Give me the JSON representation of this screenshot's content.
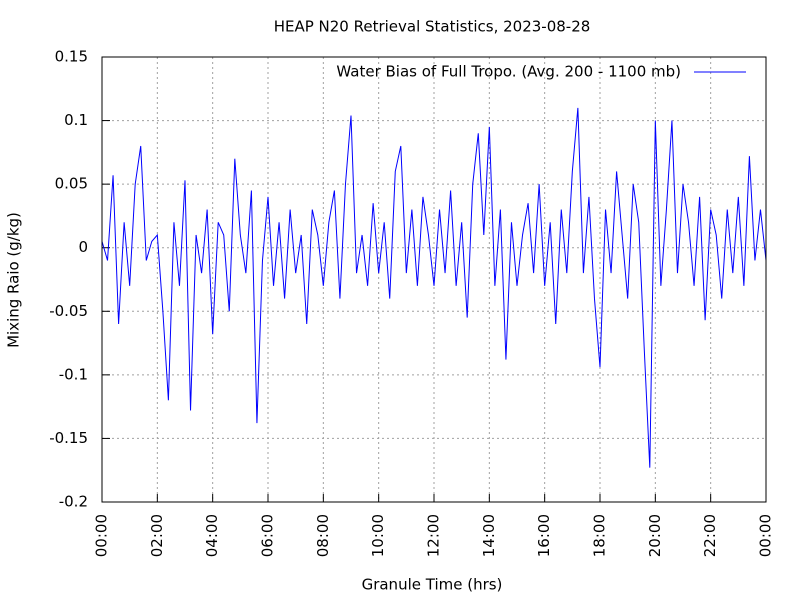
{
  "chart_data": {
    "type": "line",
    "title": "HEAP N20 Retrieval Statistics, 2023-08-28",
    "x_label": "Granule Time (hrs)",
    "y_label": "Mixing Raio (g/kg)",
    "x": [
      0,
      0.2,
      0.4,
      0.6,
      0.8,
      1,
      1.2,
      1.4,
      1.6,
      1.8,
      2,
      2.2,
      2.4,
      2.6,
      2.8,
      3,
      3.2,
      3.4,
      3.6,
      3.8,
      4,
      4.2,
      4.4,
      4.6,
      4.8,
      5,
      5.2,
      5.4,
      5.6,
      5.8,
      6,
      6.2,
      6.4,
      6.6,
      6.8,
      7,
      7.2,
      7.4,
      7.6,
      7.8,
      8,
      8.2,
      8.4,
      8.6,
      8.8,
      9,
      9.2,
      9.4,
      9.6,
      9.8,
      10,
      10.2,
      10.4,
      10.6,
      10.8,
      11,
      11.2,
      11.4,
      11.6,
      11.8,
      12,
      12.2,
      12.4,
      12.6,
      12.8,
      13,
      13.2,
      13.4,
      13.6,
      13.8,
      14,
      14.2,
      14.4,
      14.6,
      14.8,
      15,
      15.2,
      15.4,
      15.6,
      15.8,
      16,
      16.2,
      16.4,
      16.6,
      16.8,
      17,
      17.2,
      17.4,
      17.6,
      17.8,
      18,
      18.2,
      18.4,
      18.6,
      18.8,
      19,
      19.2,
      19.4,
      19.6,
      19.8,
      20,
      20.2,
      20.4,
      20.6,
      20.8,
      21,
      21.2,
      21.4,
      21.6,
      21.8,
      22,
      22.2,
      22.4,
      22.6,
      22.8,
      23,
      23.2,
      23.4,
      23.6,
      23.8,
      24
    ],
    "series": [
      {
        "name": "Water Bias of Full Tropo. (Avg. 200 - 1100 mb)",
        "color": "#0000ff",
        "values": [
          0.005,
          -0.01,
          0.057,
          -0.06,
          0.02,
          -0.03,
          0.05,
          0.08,
          -0.01,
          0.005,
          0.01,
          -0.05,
          -0.12,
          0.02,
          -0.03,
          0.053,
          -0.128,
          0.01,
          -0.02,
          0.03,
          -0.068,
          0.02,
          0.01,
          -0.05,
          0.07,
          0.01,
          -0.02,
          0.045,
          -0.138,
          -0.01,
          0.04,
          -0.03,
          0.02,
          -0.04,
          0.03,
          -0.02,
          0.01,
          -0.06,
          0.03,
          0.01,
          -0.03,
          0.02,
          0.045,
          -0.04,
          0.05,
          0.104,
          -0.02,
          0.01,
          -0.03,
          0.035,
          -0.02,
          0.02,
          -0.04,
          0.06,
          0.08,
          -0.02,
          0.03,
          -0.03,
          0.04,
          0.01,
          -0.03,
          0.03,
          -0.02,
          0.045,
          -0.03,
          0.02,
          -0.055,
          0.05,
          0.09,
          0.01,
          0.095,
          -0.03,
          0.03,
          -0.088,
          0.02,
          -0.03,
          0.01,
          0.035,
          -0.02,
          0.05,
          -0.03,
          0.02,
          -0.06,
          0.03,
          -0.02,
          0.06,
          0.11,
          -0.02,
          0.04,
          -0.04,
          -0.094,
          0.03,
          -0.02,
          0.06,
          0.01,
          -0.04,
          0.05,
          0.02,
          -0.08,
          -0.173,
          0.1,
          -0.03,
          0.03,
          0.1,
          -0.02,
          0.05,
          0.02,
          -0.03,
          0.04,
          -0.057,
          0.03,
          0.01,
          -0.04,
          0.03,
          -0.02,
          0.04,
          -0.03,
          0.072,
          -0.01,
          0.03,
          -0.01
        ]
      }
    ],
    "xlim": [
      0,
      24
    ],
    "xticks": [
      {
        "value": 0,
        "label": "00:00"
      },
      {
        "value": 2,
        "label": "02:00"
      },
      {
        "value": 4,
        "label": "04:00"
      },
      {
        "value": 6,
        "label": "06:00"
      },
      {
        "value": 8,
        "label": "08:00"
      },
      {
        "value": 10,
        "label": "10:00"
      },
      {
        "value": 12,
        "label": "12:00"
      },
      {
        "value": 14,
        "label": "14:00"
      },
      {
        "value": 16,
        "label": "16:00"
      },
      {
        "value": 18,
        "label": "18:00"
      },
      {
        "value": 20,
        "label": "20:00"
      },
      {
        "value": 22,
        "label": "22:00"
      },
      {
        "value": 24,
        "label": "00:00"
      }
    ],
    "ylim": [
      -0.2,
      0.15
    ],
    "yticks": [
      -0.2,
      -0.15,
      -0.1,
      -0.05,
      0,
      0.05,
      0.1,
      0.15
    ],
    "grid": true,
    "legend": "top-right"
  }
}
